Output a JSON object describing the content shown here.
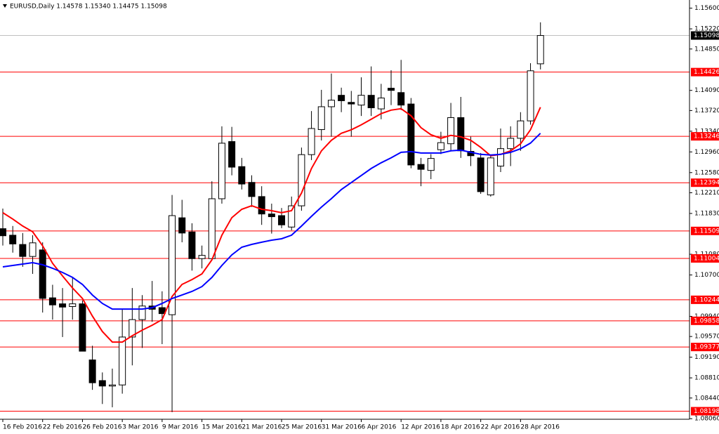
{
  "chart_data": {
    "type": "candlestick",
    "title": "EURUSD,Daily  1.14578 1.15340 1.14475 1.15098",
    "categories": [
      "16 Feb 2016",
      null,
      null,
      null,
      "22 Feb 2016",
      null,
      null,
      null,
      "26 Feb 2016",
      null,
      null,
      null,
      "3 Mar 2016",
      null,
      null,
      null,
      "9 Mar 2016",
      null,
      null,
      null,
      "15 Mar 2016",
      null,
      null,
      null,
      "21 Mar 2016",
      null,
      null,
      null,
      "25 Mar 2016",
      null,
      null,
      null,
      "31 Mar 2016",
      null,
      null,
      null,
      "6 Apr 2016",
      null,
      null,
      null,
      "12 Apr 2016",
      null,
      null,
      null,
      "18 Apr 2016",
      null,
      null,
      null,
      "22 Apr 2016",
      null,
      null,
      null,
      "28 Apr 2016",
      null,
      null
    ],
    "open": [
      1.1155,
      1.1143,
      1.1126,
      1.1104,
      1.1116,
      1.1028,
      1.1017,
      1.1012,
      1.1017,
      1.0914,
      1.0876,
      1.0866,
      1.0868,
      1.0956,
      1.0988,
      1.1013,
      1.101,
      1.0997,
      1.1175,
      1.1149,
      1.11,
      1.11,
      1.121,
      1.1315,
      1.1269,
      1.124,
      1.1214,
      1.1182,
      1.1179,
      1.1158,
      1.1197,
      1.1291,
      1.1337,
      1.1379,
      1.14,
      1.1387,
      1.1382,
      1.14,
      1.1375,
      1.1413,
      1.1405,
      1.1384,
      1.1273,
      1.1262,
      1.13,
      1.1311,
      1.1359,
      1.1297,
      1.1285,
      1.1217,
      1.127,
      1.1302,
      1.1321,
      1.1353,
      1.14578
    ],
    "high": [
      1.1192,
      1.116,
      1.1147,
      1.1143,
      1.113,
      1.1052,
      1.1046,
      1.1065,
      1.1023,
      1.094,
      1.0891,
      1.0898,
      1.1007,
      1.1046,
      1.1033,
      1.1059,
      1.104,
      1.1217,
      1.1208,
      1.1165,
      1.1124,
      1.1242,
      1.1343,
      1.1342,
      1.1285,
      1.1253,
      1.1233,
      1.1201,
      1.1193,
      1.1214,
      1.1304,
      1.1371,
      1.141,
      1.144,
      1.1414,
      1.1408,
      1.1433,
      1.1453,
      1.1421,
      1.1446,
      1.1465,
      1.1395,
      1.1285,
      1.1292,
      1.1333,
      1.1386,
      1.1397,
      1.1324,
      1.1294,
      1.1289,
      1.1339,
      1.1343,
      1.1369,
      1.1459,
      1.1534
    ],
    "low": [
      1.1124,
      1.1111,
      1.1085,
      1.1072,
      1.1001,
      1.0988,
      1.0956,
      1.0988,
      1.093,
      1.0859,
      1.0833,
      1.0827,
      1.0852,
      1.0904,
      1.0936,
      1.0984,
      1.0943,
      1.0818,
      1.113,
      1.1078,
      1.1082,
      1.1098,
      1.1201,
      1.1253,
      1.1227,
      1.1195,
      1.1162,
      1.1146,
      1.1156,
      1.1152,
      1.1188,
      1.1281,
      1.1317,
      1.1324,
      1.1369,
      1.1324,
      1.1362,
      1.1362,
      1.1356,
      1.1382,
      1.1373,
      1.1266,
      1.1233,
      1.1246,
      1.1292,
      1.1298,
      1.1285,
      1.127,
      1.1219,
      1.1214,
      1.1259,
      1.127,
      1.1298,
      1.1346,
      1.14475
    ],
    "close": [
      1.1142,
      1.1127,
      1.1104,
      1.1129,
      1.1027,
      1.1015,
      1.1011,
      1.1017,
      1.093,
      1.0872,
      1.0866,
      1.0868,
      1.0956,
      1.0988,
      1.1013,
      1.1007,
      1.0999,
      1.1179,
      1.1147,
      1.11,
      1.1106,
      1.121,
      1.1312,
      1.1268,
      1.1237,
      1.1214,
      1.1182,
      1.1177,
      1.1162,
      1.1197,
      1.1291,
      1.1339,
      1.1379,
      1.1391,
      1.139,
      1.1384,
      1.14,
      1.1377,
      1.1395,
      1.1409,
      1.1382,
      1.1272,
      1.1264,
      1.1284,
      1.1313,
      1.1359,
      1.1298,
      1.1289,
      1.1223,
      1.1285,
      1.1302,
      1.1321,
      1.1353,
      1.1445,
      1.15098
    ],
    "up_color": "#ffffff",
    "down_color": "#000000",
    "series": [
      {
        "color": "#ff0000",
        "values": [
          1.11843,
          1.11727,
          1.11598,
          1.11494,
          1.11236,
          1.10913,
          1.10681,
          1.10461,
          1.10268,
          1.09945,
          1.09661,
          1.09467,
          1.09467,
          1.09583,
          1.09687,
          1.09777,
          1.0988,
          1.10306,
          1.10526,
          1.10616,
          1.1072,
          1.10978,
          1.1143,
          1.11752,
          1.11907,
          1.11972,
          1.11907,
          1.11881,
          1.11843,
          1.11881,
          1.12204,
          1.12656,
          1.12979,
          1.13173,
          1.13302,
          1.13366,
          1.13457,
          1.1356,
          1.13663,
          1.13728,
          1.13754,
          1.13625,
          1.13405,
          1.13276,
          1.13211,
          1.13263,
          1.13237,
          1.13173,
          1.13044,
          1.12889,
          1.12915,
          1.12979,
          1.13108,
          1.13366,
          1.1378
        ]
      },
      {
        "color": "#0000ff",
        "values": [
          1.10849,
          1.10875,
          1.109,
          1.10926,
          1.10887,
          1.10823,
          1.10745,
          1.10655,
          1.10526,
          1.10332,
          1.10177,
          1.10074,
          1.10074,
          1.10074,
          1.10074,
          1.101,
          1.10177,
          1.10268,
          1.10332,
          1.10397,
          1.10487,
          1.10655,
          1.10875,
          1.11068,
          1.1121,
          1.11262,
          1.11301,
          1.11339,
          1.11365,
          1.1143,
          1.11598,
          1.11778,
          1.11946,
          1.12101,
          1.12269,
          1.12398,
          1.12527,
          1.12656,
          1.1276,
          1.1285,
          1.12953,
          1.12966,
          1.1294,
          1.1294,
          1.1294,
          1.12979,
          1.12992,
          1.12953,
          1.12915,
          1.12902,
          1.12915,
          1.12953,
          1.13018,
          1.13121,
          1.13302
        ]
      }
    ],
    "levels": [
      {
        "value": 1.15098,
        "color": "#c0c0c0",
        "label_color": "#000000"
      },
      {
        "value": 1.14426,
        "color": "#ff0000",
        "label_color": "#ff0000"
      },
      {
        "value": 1.13246,
        "color": "#ff0000",
        "label_color": "#ff0000"
      },
      {
        "value": 1.12394,
        "color": "#ff0000",
        "label_color": "#ff0000"
      },
      {
        "value": 1.11509,
        "color": "#ff0000",
        "label_color": "#ff0000"
      },
      {
        "value": 1.11004,
        "color": "#ff0000",
        "label_color": "#ff0000"
      },
      {
        "value": 1.10244,
        "color": "#ff0000",
        "label_color": "#ff0000"
      },
      {
        "value": 1.09858,
        "color": "#ff0000",
        "label_color": "#ff0000"
      },
      {
        "value": 1.09377,
        "color": "#ff0000",
        "label_color": "#ff0000"
      },
      {
        "value": 1.08198,
        "color": "#ff0000",
        "label_color": "#ff0000"
      }
    ],
    "ylim": [
      1.0805,
      1.1575
    ],
    "yticks": [
      {
        "value": 1.156,
        "label": "1.15600"
      },
      {
        "value": 1.1522,
        "label": "1.15220"
      },
      {
        "value": 1.1485,
        "label": "1.14850"
      },
      {
        "value": 1.1409,
        "label": "1.14090"
      },
      {
        "value": 1.1372,
        "label": "1.13720"
      },
      {
        "value": 1.1334,
        "label": "1.13340"
      },
      {
        "value": 1.1296,
        "label": "1.12960"
      },
      {
        "value": 1.1258,
        "label": "1.12580"
      },
      {
        "value": 1.1221,
        "label": "1.12210"
      },
      {
        "value": 1.1183,
        "label": "1.11830"
      },
      {
        "value": 1.1108,
        "label": "1.11080"
      },
      {
        "value": 1.107,
        "label": "1.10700"
      },
      {
        "value": 1.0994,
        "label": "1.09940"
      },
      {
        "value": 1.0957,
        "label": "1.09570"
      },
      {
        "value": 1.0919,
        "label": "1.09190"
      },
      {
        "value": 1.0881,
        "label": "1.08810"
      },
      {
        "value": 1.0844,
        "label": "1.08440"
      },
      {
        "value": 1.0806,
        "label": "1.08060"
      }
    ],
    "grid": false
  }
}
